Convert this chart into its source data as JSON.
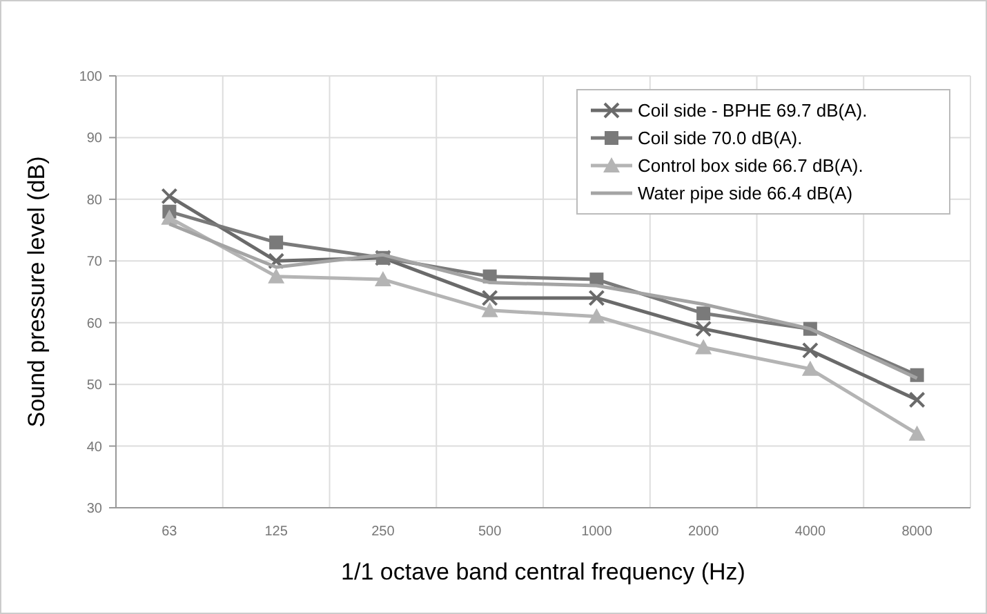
{
  "chart_data": {
    "type": "line",
    "xlabel": "1/1 octave band central frequency (Hz)",
    "ylabel": "Sound pressure level (dB)",
    "categories": [
      "63",
      "125",
      "250",
      "500",
      "1000",
      "2000",
      "4000",
      "8000"
    ],
    "series": [
      {
        "name": "Coil side - BPHE 69.7 dB(A).",
        "color": "#6a6a6a",
        "marker": "cross",
        "values": [
          80.5,
          70,
          70.5,
          64,
          64,
          59,
          55.5,
          47.5
        ]
      },
      {
        "name": "Coil side 70.0 dB(A).",
        "color": "#7a7a7a",
        "marker": "square",
        "values": [
          78,
          73,
          70.5,
          67.5,
          67,
          61.5,
          59,
          51.5
        ]
      },
      {
        "name": "Control box side 66.7 dB(A).",
        "color": "#b4b4b4",
        "marker": "triangle",
        "values": [
          77,
          67.5,
          67,
          62,
          61,
          56,
          52.5,
          42
        ]
      },
      {
        "name": "Water pipe side 66.4 dB(A)",
        "color": "#a4a4a4",
        "marker": "none",
        "values": [
          76,
          69,
          71,
          66.5,
          66,
          63,
          59,
          51
        ]
      }
    ],
    "ylim": [
      30,
      100
    ],
    "yticks": [
      30,
      40,
      50,
      60,
      70,
      80,
      90,
      100
    ],
    "grid": true,
    "legend": "top right"
  }
}
